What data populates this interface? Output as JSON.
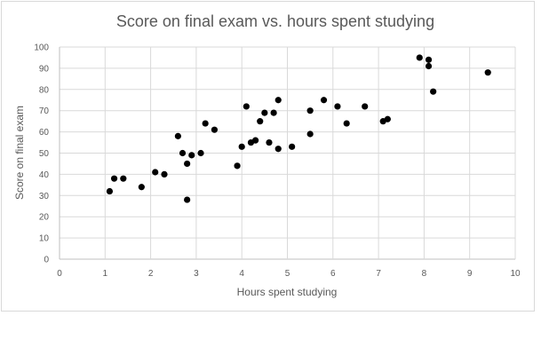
{
  "chart_data": {
    "type": "scatter",
    "title": "Score on final exam vs. hours spent studying",
    "xlabel": "Hours spent studying",
    "ylabel": "Score on final exam",
    "xlim": [
      0,
      10
    ],
    "ylim": [
      0,
      100
    ],
    "xticks": [
      0,
      1,
      2,
      3,
      4,
      5,
      6,
      7,
      8,
      9,
      10
    ],
    "yticks": [
      0,
      10,
      20,
      30,
      40,
      50,
      60,
      70,
      80,
      90,
      100
    ],
    "grid": true,
    "legend": "none",
    "marker_color": "#000000",
    "points": [
      {
        "x": 1.1,
        "y": 32
      },
      {
        "x": 1.2,
        "y": 38
      },
      {
        "x": 1.4,
        "y": 38
      },
      {
        "x": 1.8,
        "y": 34
      },
      {
        "x": 2.1,
        "y": 41
      },
      {
        "x": 2.3,
        "y": 40
      },
      {
        "x": 2.6,
        "y": 58
      },
      {
        "x": 2.7,
        "y": 50
      },
      {
        "x": 2.8,
        "y": 45
      },
      {
        "x": 2.8,
        "y": 28
      },
      {
        "x": 2.9,
        "y": 49
      },
      {
        "x": 3.1,
        "y": 50
      },
      {
        "x": 3.2,
        "y": 64
      },
      {
        "x": 3.4,
        "y": 61
      },
      {
        "x": 3.9,
        "y": 44
      },
      {
        "x": 4.0,
        "y": 53
      },
      {
        "x": 4.1,
        "y": 72
      },
      {
        "x": 4.2,
        "y": 55
      },
      {
        "x": 4.3,
        "y": 56
      },
      {
        "x": 4.4,
        "y": 65
      },
      {
        "x": 4.5,
        "y": 69
      },
      {
        "x": 4.6,
        "y": 55
      },
      {
        "x": 4.7,
        "y": 69
      },
      {
        "x": 4.8,
        "y": 75
      },
      {
        "x": 4.8,
        "y": 52
      },
      {
        "x": 5.1,
        "y": 53
      },
      {
        "x": 5.5,
        "y": 70
      },
      {
        "x": 5.5,
        "y": 59
      },
      {
        "x": 5.8,
        "y": 75
      },
      {
        "x": 6.1,
        "y": 72
      },
      {
        "x": 6.3,
        "y": 64
      },
      {
        "x": 6.7,
        "y": 72
      },
      {
        "x": 7.1,
        "y": 65
      },
      {
        "x": 7.2,
        "y": 66
      },
      {
        "x": 7.9,
        "y": 95
      },
      {
        "x": 8.1,
        "y": 94
      },
      {
        "x": 8.1,
        "y": 91
      },
      {
        "x": 8.2,
        "y": 79
      },
      {
        "x": 9.4,
        "y": 88
      }
    ]
  }
}
